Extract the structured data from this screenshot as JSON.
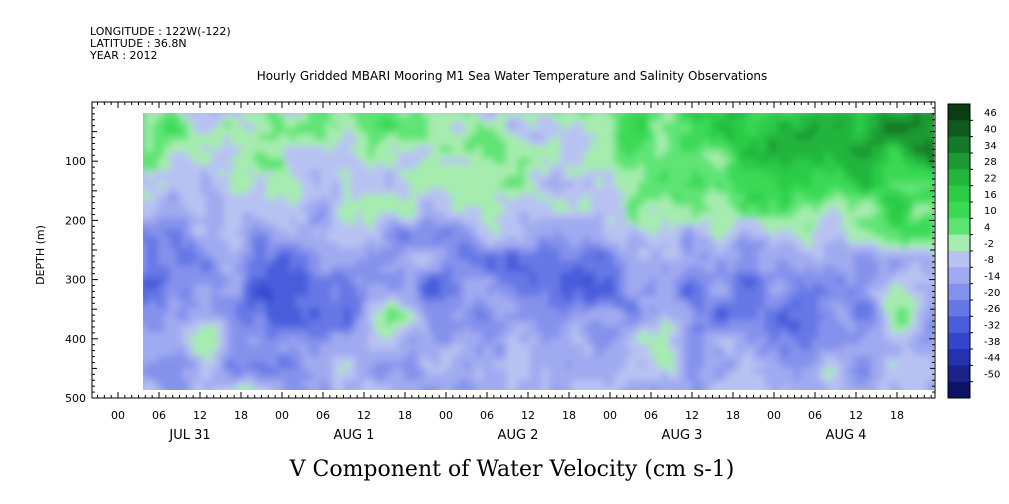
{
  "header": {
    "longitude": "LONGITUDE : 122W(-122)",
    "latitude": "LATITUDE : 36.8N",
    "year": "YEAR : 2012"
  },
  "chart_data": {
    "type": "heatmap",
    "title": "Hourly Gridded MBARI Mooring M1 Sea Water Temperature and Salinity Observations",
    "xlabel": "V Component of Water Velocity (cm s-1)",
    "ylabel": "DEPTH (m)",
    "x_axis": {
      "start_hour": 0,
      "end_hour": 126,
      "tick_labels": [
        {
          "hour": 0,
          "label": "00"
        },
        {
          "hour": 6,
          "label": "06"
        },
        {
          "hour": 12,
          "label": "12"
        },
        {
          "hour": 18,
          "label": "18"
        },
        {
          "hour": 24,
          "label": "00"
        },
        {
          "hour": 30,
          "label": "06"
        },
        {
          "hour": 36,
          "label": "12"
        },
        {
          "hour": 42,
          "label": "18"
        },
        {
          "hour": 48,
          "label": "00"
        },
        {
          "hour": 54,
          "label": "06"
        },
        {
          "hour": 60,
          "label": "12"
        },
        {
          "hour": 66,
          "label": "18"
        },
        {
          "hour": 72,
          "label": "00"
        },
        {
          "hour": 78,
          "label": "06"
        },
        {
          "hour": 84,
          "label": "12"
        },
        {
          "hour": 90,
          "label": "18"
        },
        {
          "hour": 96,
          "label": "00"
        },
        {
          "hour": 102,
          "label": "06"
        },
        {
          "hour": 108,
          "label": "12"
        },
        {
          "hour": 114,
          "label": "18"
        },
        {
          "hour": 120,
          "label": "00"
        },
        {
          "hour": 126,
          "label": "06"
        },
        {
          "hour": 132,
          "label": "12"
        },
        {
          "hour": 138,
          "label": "18"
        }
      ],
      "day_labels": [
        {
          "hour": 12,
          "label": "JUL 31"
        },
        {
          "hour": 36,
          "label": "AUG  1"
        },
        {
          "hour": 60,
          "label": "AUG  2"
        },
        {
          "hour": 84,
          "label": "AUG  3"
        },
        {
          "hour": 108,
          "label": "AUG  4"
        }
      ]
    },
    "y_axis": {
      "range": [
        0,
        500
      ],
      "reversed": true,
      "tick_labels": [
        100,
        200,
        300,
        400,
        500
      ],
      "data_range": [
        20,
        485
      ]
    },
    "time_coverage_hours": [
      7.5,
      127.5
    ],
    "colorbar": {
      "levels": [
        46,
        40,
        34,
        28,
        22,
        16,
        10,
        4,
        -2,
        -8,
        -14,
        -20,
        -26,
        -32,
        -38,
        -44,
        -50
      ],
      "colors": [
        "#0a3d14",
        "#0f5a1e",
        "#157a28",
        "#1c9a32",
        "#23b53c",
        "#2ccc46",
        "#3ad956",
        "#5ee474",
        "#a5ecae",
        "#b8c2f2",
        "#a0aaf0",
        "#8592ec",
        "#6678e6",
        "#4a5ddc",
        "#3346cc",
        "#2333b0",
        "#1a238c",
        "#0d1266"
      ]
    },
    "pattern": "Positive (green) V velocities dominate the upper 0-250 m from Aug 2 through Aug 4 (strongest ~30-40 cm/s near 100-150 m on Aug 4); negative (blue, -8 to -26 cm/s) values dominate below ~200 m with isolated green patches near 350-480 m."
  }
}
